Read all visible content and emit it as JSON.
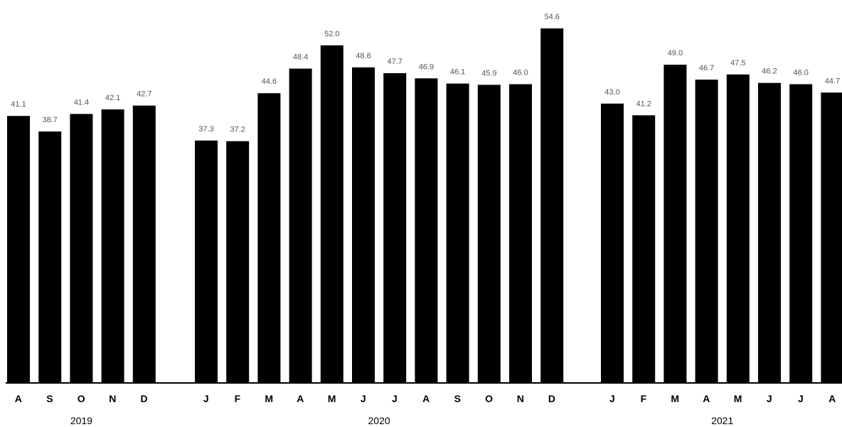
{
  "chart_data": {
    "type": "bar",
    "title": "",
    "xlabel": "",
    "ylabel": "",
    "ylim": [
      0,
      54.6
    ],
    "grid": false,
    "colors": {
      "bar": "#000000",
      "label": "#555555",
      "axis": "#000000"
    },
    "groups": [
      {
        "year": "2019",
        "categories": [
          "A",
          "S",
          "O",
          "N",
          "D"
        ],
        "values": [
          41.1,
          38.7,
          41.4,
          42.1,
          42.7
        ],
        "labels": [
          "41.1",
          "38.7",
          "41.4",
          "42.1",
          "42.7"
        ]
      },
      {
        "year": "2020",
        "categories": [
          "J",
          "F",
          "M",
          "A",
          "M",
          "J",
          "J",
          "A",
          "S",
          "O",
          "N",
          "D"
        ],
        "values": [
          37.3,
          37.2,
          44.6,
          48.4,
          52.0,
          48.6,
          47.7,
          46.9,
          46.1,
          45.9,
          46.0,
          54.6
        ],
        "labels": [
          "37.3",
          "37.2",
          "44.6",
          "48.4",
          "52.0",
          "48.6",
          "47.7",
          "46.9",
          "46.1",
          "45.9",
          "46.0",
          "54.6"
        ]
      },
      {
        "year": "2021",
        "categories": [
          "J",
          "F",
          "M",
          "A",
          "M",
          "J",
          "J",
          "A"
        ],
        "values": [
          43.0,
          41.2,
          49.0,
          46.7,
          47.5,
          46.2,
          46.0,
          44.7
        ],
        "labels": [
          "43.0",
          "41.2",
          "49.0",
          "46.7",
          "47.5",
          "46.2",
          "46.0",
          "44.7"
        ]
      }
    ]
  }
}
